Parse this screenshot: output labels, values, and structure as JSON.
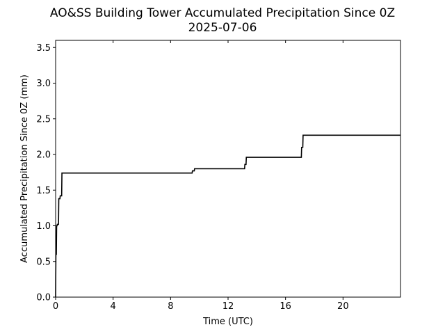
{
  "chart_data": {
    "type": "line",
    "title": "AO&SS Building Tower Accumulated Precipitation Since 0Z",
    "subtitle": "2025-07-06",
    "xlabel": "Time (UTC)",
    "ylabel": "Accumulated Precipitation Since 0Z (mm)",
    "xlim": [
      0,
      24
    ],
    "ylim": [
      0,
      3.6
    ],
    "xticks": [
      0,
      4,
      8,
      12,
      16,
      20
    ],
    "yticks": [
      0.0,
      0.5,
      1.0,
      1.5,
      2.0,
      2.5,
      3.0,
      3.5
    ],
    "xtick_labels": [
      "0",
      "4",
      "8",
      "12",
      "16",
      "20"
    ],
    "ytick_labels": [
      "0.0",
      "0.5",
      "1.0",
      "1.5",
      "2.0",
      "2.5",
      "3.0",
      "3.5"
    ],
    "grid": false,
    "legend": "none",
    "line_color": "#000000",
    "series": [
      {
        "x": [
          0.0,
          0.02,
          0.05,
          0.07,
          0.1,
          0.12,
          0.2,
          0.22,
          0.3,
          0.32,
          0.42,
          0.44,
          9.5,
          9.52,
          9.65,
          9.67,
          13.15,
          13.17,
          13.25,
          13.27,
          17.1,
          17.12,
          17.2,
          17.22,
          24.0
        ],
        "y": [
          0.0,
          0.6,
          0.6,
          1.0,
          1.0,
          1.02,
          1.02,
          1.38,
          1.38,
          1.42,
          1.42,
          1.74,
          1.74,
          1.77,
          1.77,
          1.8,
          1.8,
          1.86,
          1.86,
          1.96,
          1.96,
          2.1,
          2.1,
          2.27,
          2.27
        ]
      }
    ]
  }
}
